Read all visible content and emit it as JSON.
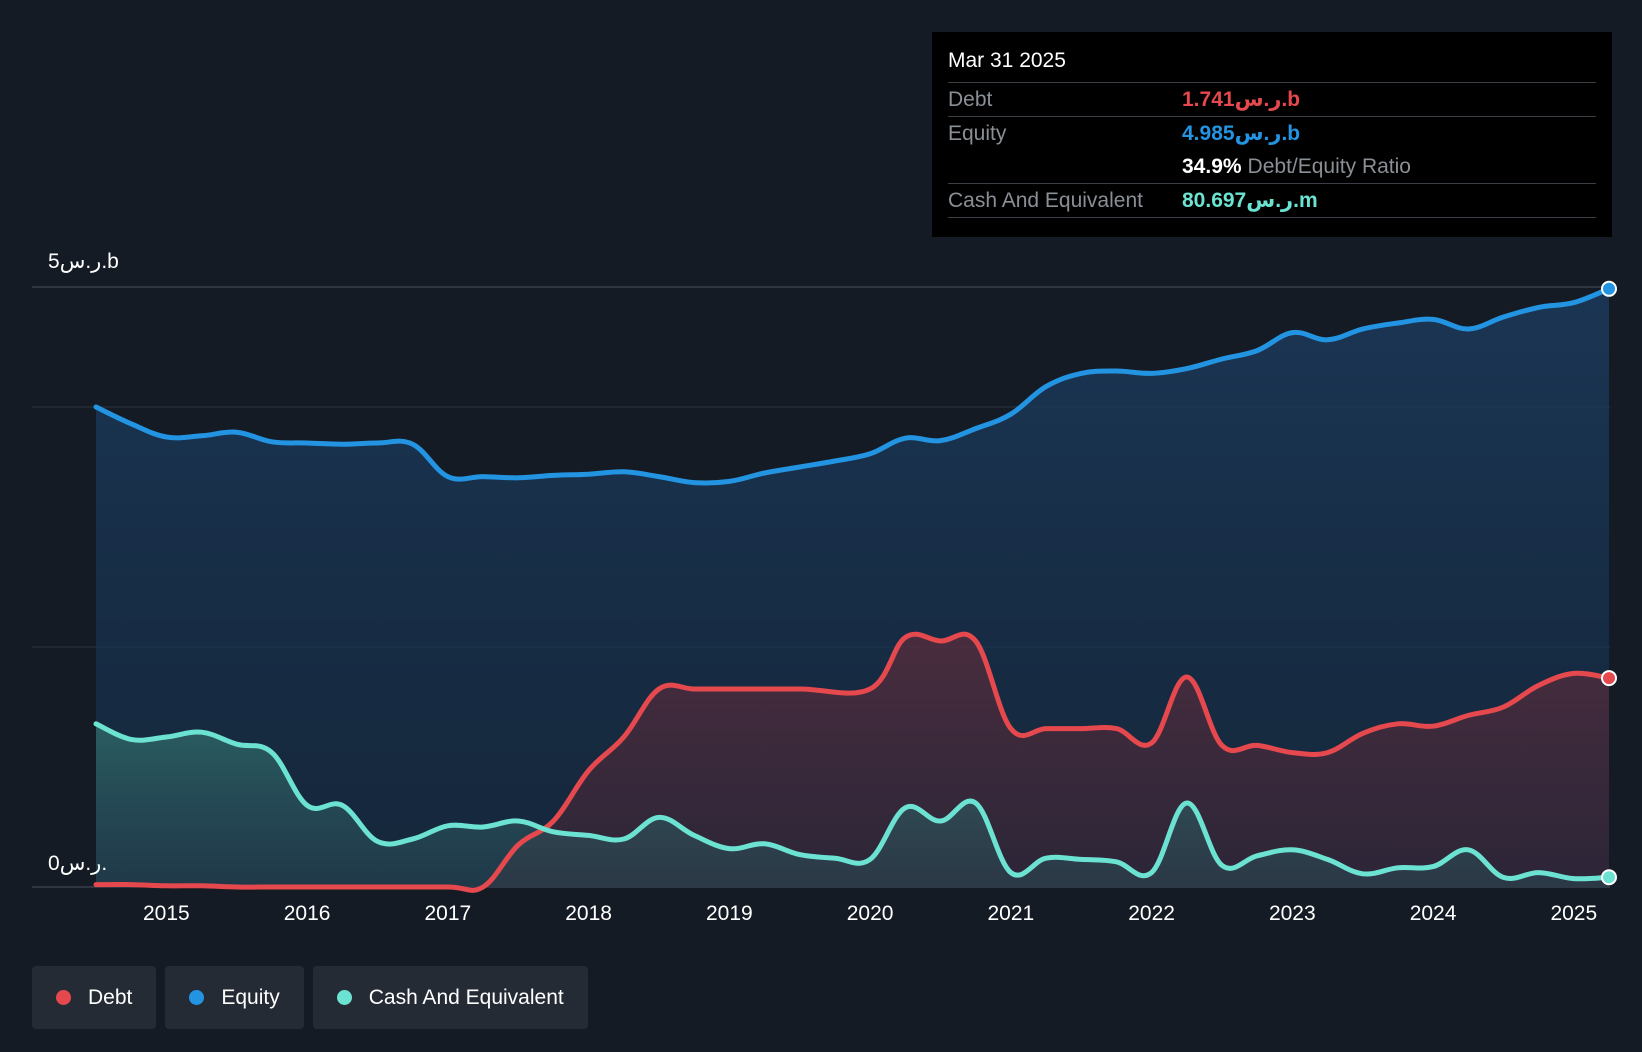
{
  "colors": {
    "debt": "#e5484d",
    "equity": "#2394e1",
    "cash": "#6ce3d2",
    "background": "#151b24",
    "grid": "#2a3340"
  },
  "tooltip": {
    "date": "Mar 31 2025",
    "debt_label": "Debt",
    "debt_value": "1.741ر.س.b",
    "equity_label": "Equity",
    "equity_value": "4.985ر.س.b",
    "ratio_value": "34.9%",
    "ratio_label": "Debt/Equity Ratio",
    "cash_label": "Cash And Equivalent",
    "cash_value": "80.697ر.س.m"
  },
  "y_axis": {
    "top_label": "5ر.س.b",
    "bottom_label": "0ر.س."
  },
  "legend": [
    {
      "name": "Debt",
      "color_key": "debt"
    },
    {
      "name": "Equity",
      "color_key": "equity"
    },
    {
      "name": "Cash And Equivalent",
      "color_key": "cash"
    }
  ],
  "chart_data": {
    "type": "area",
    "title": "",
    "xlabel": "",
    "ylabel": "",
    "ylim": [
      0,
      5
    ],
    "unit": "ر.س.b",
    "x_ticks": [
      2015,
      2016,
      2017,
      2018,
      2019,
      2020,
      2021,
      2022,
      2023,
      2024,
      2025
    ],
    "grid": true,
    "legend_position": "bottom-left",
    "series": [
      {
        "name": "Equity",
        "color_key": "equity",
        "points": [
          [
            2014.5,
            4.0
          ],
          [
            2014.75,
            3.86
          ],
          [
            2015.0,
            3.75
          ],
          [
            2015.25,
            3.76
          ],
          [
            2015.5,
            3.79
          ],
          [
            2015.75,
            3.71
          ],
          [
            2016.0,
            3.7
          ],
          [
            2016.25,
            3.69
          ],
          [
            2016.5,
            3.7
          ],
          [
            2016.75,
            3.69
          ],
          [
            2017.0,
            3.42
          ],
          [
            2017.25,
            3.42
          ],
          [
            2017.5,
            3.41
          ],
          [
            2017.75,
            3.43
          ],
          [
            2018.0,
            3.44
          ],
          [
            2018.25,
            3.46
          ],
          [
            2018.5,
            3.42
          ],
          [
            2018.75,
            3.37
          ],
          [
            2019.0,
            3.38
          ],
          [
            2019.25,
            3.45
          ],
          [
            2019.5,
            3.5
          ],
          [
            2019.75,
            3.55
          ],
          [
            2020.0,
            3.61
          ],
          [
            2020.25,
            3.74
          ],
          [
            2020.5,
            3.72
          ],
          [
            2020.75,
            3.82
          ],
          [
            2021.0,
            3.94
          ],
          [
            2021.25,
            4.17
          ],
          [
            2021.5,
            4.28
          ],
          [
            2021.75,
            4.3
          ],
          [
            2022.0,
            4.28
          ],
          [
            2022.25,
            4.32
          ],
          [
            2022.5,
            4.4
          ],
          [
            2022.75,
            4.47
          ],
          [
            2023.0,
            4.62
          ],
          [
            2023.25,
            4.56
          ],
          [
            2023.5,
            4.65
          ],
          [
            2023.75,
            4.7
          ],
          [
            2024.0,
            4.73
          ],
          [
            2024.25,
            4.65
          ],
          [
            2024.5,
            4.75
          ],
          [
            2024.75,
            4.83
          ],
          [
            2025.0,
            4.87
          ],
          [
            2025.25,
            4.985
          ]
        ]
      },
      {
        "name": "Debt",
        "color_key": "debt",
        "points": [
          [
            2014.5,
            0.02
          ],
          [
            2014.75,
            0.02
          ],
          [
            2015.0,
            0.01
          ],
          [
            2015.25,
            0.01
          ],
          [
            2015.5,
            0.0
          ],
          [
            2015.75,
            0.0
          ],
          [
            2016.0,
            0.0
          ],
          [
            2016.5,
            0.0
          ],
          [
            2017.0,
            0.0
          ],
          [
            2017.25,
            0.0
          ],
          [
            2017.5,
            0.35
          ],
          [
            2017.75,
            0.55
          ],
          [
            2018.0,
            0.97
          ],
          [
            2018.25,
            1.25
          ],
          [
            2018.5,
            1.65
          ],
          [
            2018.75,
            1.65
          ],
          [
            2019.0,
            1.65
          ],
          [
            2019.5,
            1.65
          ],
          [
            2020.0,
            1.65
          ],
          [
            2020.25,
            2.08
          ],
          [
            2020.5,
            2.05
          ],
          [
            2020.75,
            2.05
          ],
          [
            2021.0,
            1.32
          ],
          [
            2021.25,
            1.32
          ],
          [
            2021.5,
            1.32
          ],
          [
            2021.75,
            1.32
          ],
          [
            2022.0,
            1.2
          ],
          [
            2022.25,
            1.75
          ],
          [
            2022.5,
            1.18
          ],
          [
            2022.75,
            1.18
          ],
          [
            2023.0,
            1.12
          ],
          [
            2023.25,
            1.12
          ],
          [
            2023.5,
            1.28
          ],
          [
            2023.75,
            1.36
          ],
          [
            2024.0,
            1.34
          ],
          [
            2024.25,
            1.43
          ],
          [
            2024.5,
            1.5
          ],
          [
            2024.75,
            1.68
          ],
          [
            2025.0,
            1.78
          ],
          [
            2025.25,
            1.741
          ]
        ]
      },
      {
        "name": "Cash And Equivalent",
        "color_key": "cash",
        "points": [
          [
            2014.5,
            1.36
          ],
          [
            2014.75,
            1.23
          ],
          [
            2015.0,
            1.25
          ],
          [
            2015.25,
            1.29
          ],
          [
            2015.5,
            1.19
          ],
          [
            2015.75,
            1.12
          ],
          [
            2016.0,
            0.68
          ],
          [
            2016.25,
            0.68
          ],
          [
            2016.5,
            0.38
          ],
          [
            2016.75,
            0.4
          ],
          [
            2017.0,
            0.51
          ],
          [
            2017.25,
            0.5
          ],
          [
            2017.5,
            0.55
          ],
          [
            2017.75,
            0.46
          ],
          [
            2018.0,
            0.43
          ],
          [
            2018.25,
            0.4
          ],
          [
            2018.5,
            0.58
          ],
          [
            2018.75,
            0.43
          ],
          [
            2019.0,
            0.32
          ],
          [
            2019.25,
            0.36
          ],
          [
            2019.5,
            0.27
          ],
          [
            2019.75,
            0.24
          ],
          [
            2020.0,
            0.23
          ],
          [
            2020.25,
            0.66
          ],
          [
            2020.5,
            0.55
          ],
          [
            2020.75,
            0.7
          ],
          [
            2021.0,
            0.12
          ],
          [
            2021.25,
            0.24
          ],
          [
            2021.5,
            0.23
          ],
          [
            2021.75,
            0.21
          ],
          [
            2022.0,
            0.12
          ],
          [
            2022.25,
            0.7
          ],
          [
            2022.5,
            0.18
          ],
          [
            2022.75,
            0.26
          ],
          [
            2023.0,
            0.31
          ],
          [
            2023.25,
            0.23
          ],
          [
            2023.5,
            0.11
          ],
          [
            2023.75,
            0.16
          ],
          [
            2024.0,
            0.17
          ],
          [
            2024.25,
            0.31
          ],
          [
            2024.5,
            0.08
          ],
          [
            2024.75,
            0.12
          ],
          [
            2025.0,
            0.07
          ],
          [
            2025.25,
            0.081
          ]
        ]
      }
    ]
  }
}
